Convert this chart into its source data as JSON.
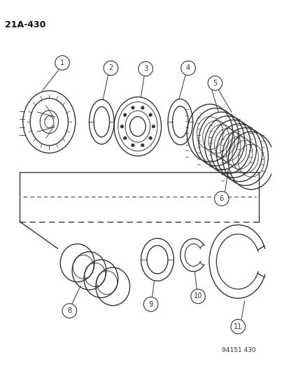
{
  "page_number": "21A-430",
  "doc_number": "94151 430",
  "background_color": "#ffffff",
  "line_color": "#333333",
  "figure_size": [
    4.14,
    5.33
  ],
  "dpi": 100
}
